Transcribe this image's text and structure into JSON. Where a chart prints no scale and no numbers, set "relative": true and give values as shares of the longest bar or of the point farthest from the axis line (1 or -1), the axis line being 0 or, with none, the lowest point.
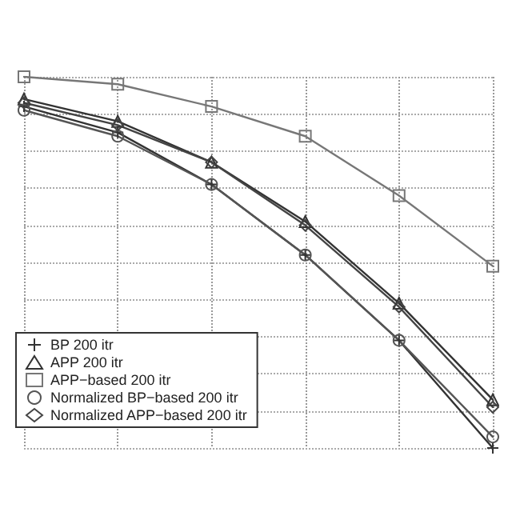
{
  "chart_data": {
    "type": "line",
    "relative": true,
    "categories": [
      null,
      null,
      null,
      null,
      null,
      null
    ],
    "grid": true,
    "legend": "bottom left",
    "line_style": "solid",
    "series": [
      {
        "name": "BP 200 itr",
        "color": "#333333",
        "marker": "cross",
        "values": [
          0.92,
          0.85,
          0.71,
          0.52,
          0.29,
          0
        ]
      },
      {
        "name": "APP 200 itr",
        "color": "#333333",
        "marker": "triangle",
        "values": [
          0.94,
          0.88,
          0.77,
          0.61,
          0.39,
          0.13
        ]
      },
      {
        "name": "APP−based 200 itr",
        "color": "#777777",
        "marker": "square",
        "values": [
          1,
          0.98,
          0.92,
          0.84,
          0.68,
          0.49
        ]
      },
      {
        "name": "Normalized BP−based 200 itr",
        "color": "#555555",
        "marker": "circle",
        "values": [
          0.91,
          0.84,
          0.71,
          0.52,
          0.29,
          0.03
        ]
      },
      {
        "name": "Normalized APP−based 200 itr",
        "color": "#444444",
        "marker": "diamond",
        "values": [
          0.93,
          0.87,
          0.77,
          0.6,
          0.38,
          0.11
        ]
      }
    ]
  }
}
